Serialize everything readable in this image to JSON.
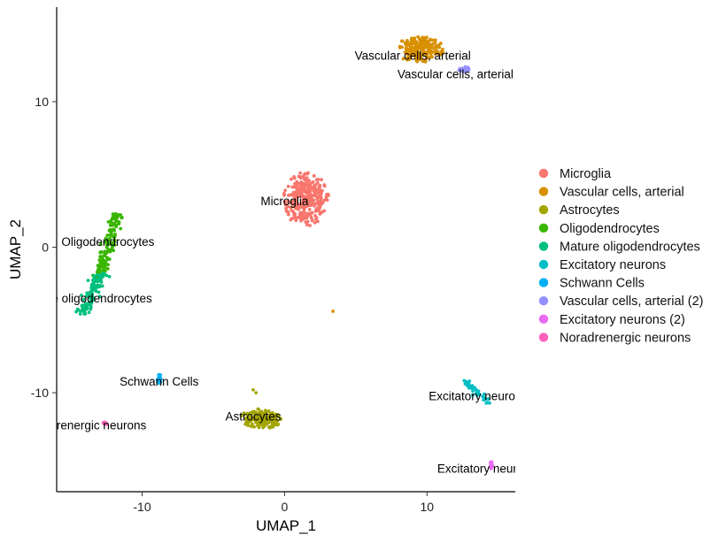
{
  "chart_data": {
    "type": "scatter",
    "xlabel": "UMAP_1",
    "ylabel": "UMAP_2",
    "xlim": [
      -16.0,
      16.2
    ],
    "ylim": [
      -16.8,
      16.5
    ],
    "x_ticks": [
      -10,
      0,
      10
    ],
    "y_ticks": [
      -10,
      0,
      10
    ],
    "grid": false,
    "legend_position": "right",
    "series": [
      {
        "name": "Microglia",
        "color": "#F8766D",
        "center": [
          1.5,
          3.3
        ],
        "spread": [
          1.6,
          1.9
        ],
        "n": 320,
        "label": "Microglia",
        "label_pos": [
          0.0,
          3.2
        ]
      },
      {
        "name": "Vascular cells, arterial",
        "color": "#D89000",
        "center": [
          9.5,
          13.6
        ],
        "spread": [
          1.7,
          0.9
        ],
        "n": 220,
        "label": "Vascular cells, arterial",
        "label_pos": [
          9.0,
          13.2
        ],
        "extra": [
          [
            3.4,
            -4.4
          ]
        ]
      },
      {
        "name": "Astrocytes",
        "color": "#A3A500",
        "center": [
          -1.7,
          -11.8
        ],
        "spread": [
          1.5,
          0.7
        ],
        "n": 170,
        "label": "Astrocytes",
        "label_pos": [
          -2.2,
          -11.6
        ],
        "extra": [
          [
            -2.2,
            -9.8
          ],
          [
            -2.0,
            -10.0
          ]
        ]
      },
      {
        "name": "Oligodendrocytes",
        "color": "#39B600",
        "center": [
          -12.3,
          0.2
        ],
        "spread": [
          0.4,
          2.0
        ],
        "n": 140,
        "label": "Oligodendrocytes",
        "label_pos": [
          -12.4,
          0.4
        ]
      },
      {
        "name": "Mature oligodendrocytes",
        "color": "#00BF7D",
        "center": [
          -13.5,
          -3.3
        ],
        "spread": [
          0.45,
          1.1
        ],
        "n": 110,
        "label": "Mature oligodendrocytes",
        "label_pos": [
          -13.9,
          -3.5
        ]
      },
      {
        "name": "Excitatory neurons",
        "color": "#00BFC4",
        "center": [
          13.5,
          -9.8
        ],
        "spread": [
          0.6,
          0.4
        ],
        "n": 40,
        "label": "Excitatory neurons",
        "label_pos": [
          13.6,
          -10.2
        ]
      },
      {
        "name": "Schwann Cells",
        "color": "#00B0F6",
        "center": [
          -8.8,
          -9.0
        ],
        "spread": [
          0.15,
          0.35
        ],
        "n": 28,
        "label": "Schwann Cells",
        "label_pos": [
          -8.8,
          -9.2
        ]
      },
      {
        "name": "Vascular cells, arterial (2)",
        "color": "#9590FF",
        "center": [
          12.6,
          12.2
        ],
        "spread": [
          0.45,
          0.22
        ],
        "n": 22,
        "label": "Vascular cells, arterial",
        "label_pos": [
          12.0,
          11.9
        ]
      },
      {
        "name": "Excitatory neurons (2)",
        "color": "#E76BF3",
        "center": [
          14.5,
          -15.0
        ],
        "spread": [
          0.12,
          0.28
        ],
        "n": 14,
        "label": "Excitatory neurons",
        "label_pos": [
          14.2,
          -15.2
        ]
      },
      {
        "name": "Noradrenergic neurons",
        "color": "#FF62BC",
        "center": [
          -12.6,
          -12.1
        ],
        "spread": [
          0.15,
          0.12
        ],
        "n": 8,
        "label": "Noradrenergic neurons",
        "label_pos": [
          -14.0,
          -12.2
        ]
      }
    ]
  }
}
